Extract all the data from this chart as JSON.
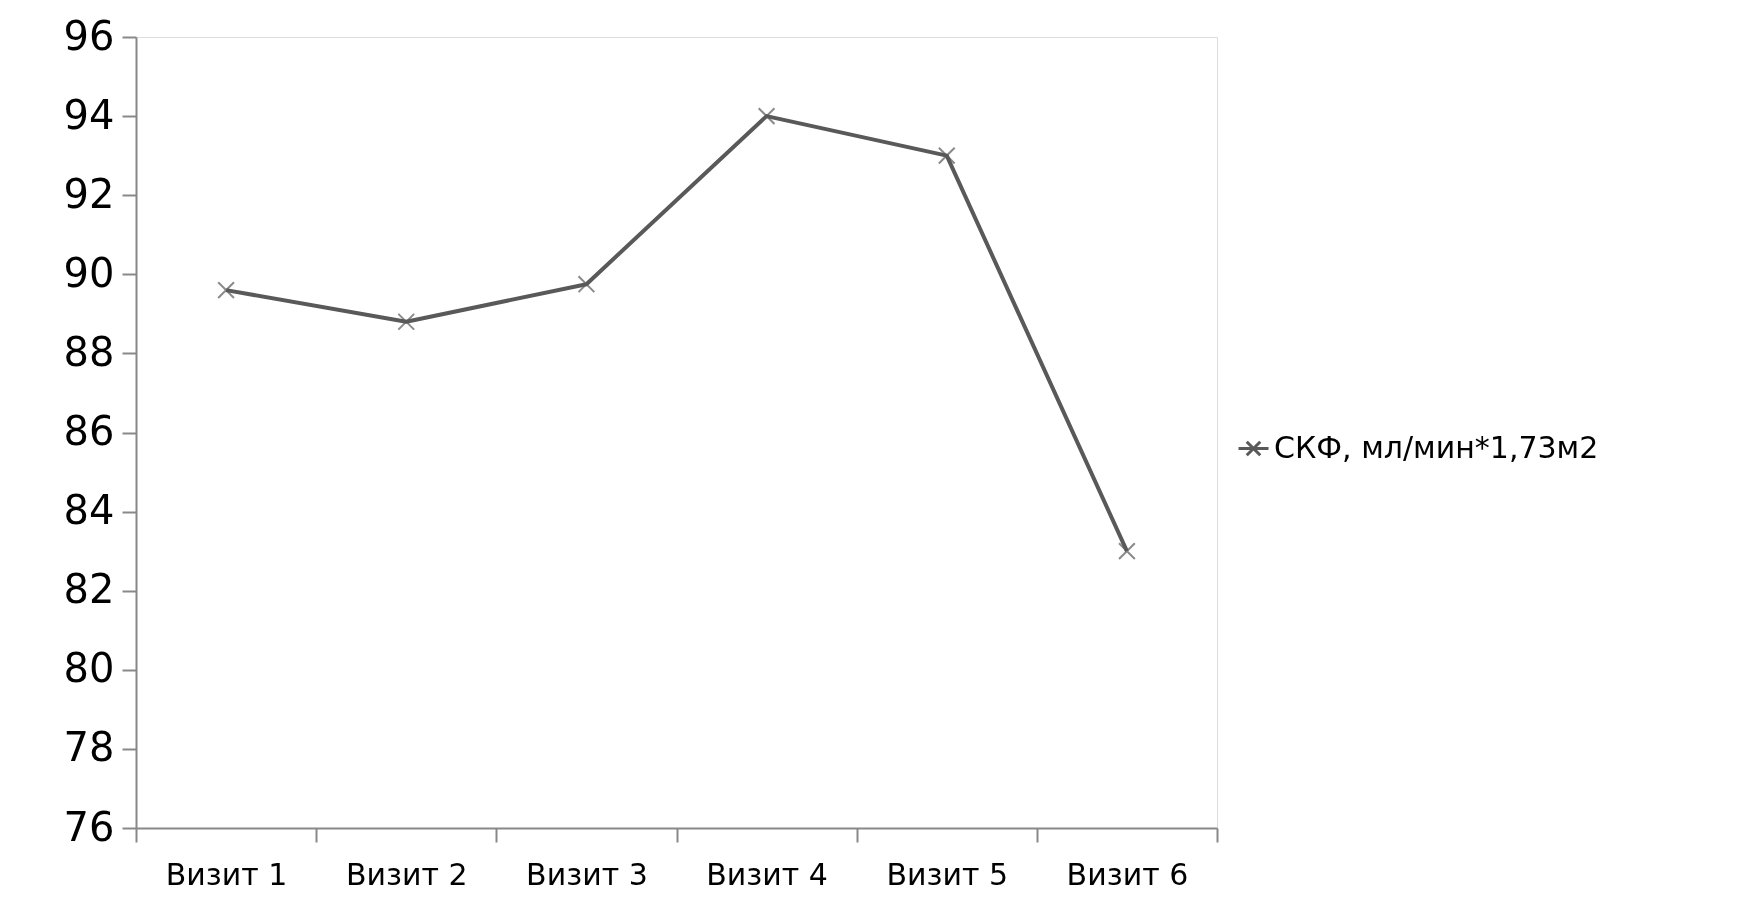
{
  "chart_data": {
    "type": "line",
    "categories": [
      "Визит 1",
      "Визит 2",
      "Визит 3",
      "Визит 4",
      "Визит 5",
      "Визит 6"
    ],
    "series": [
      {
        "name": "СКФ, мл/мин*1,73м2",
        "color": "#595959",
        "values": [
          89.6,
          88.8,
          89.75,
          94,
          93,
          83
        ]
      }
    ],
    "ylim": [
      76,
      96
    ],
    "yticks": [
      76,
      78,
      80,
      82,
      84,
      86,
      88,
      90,
      92,
      94,
      96
    ],
    "grid": false,
    "legend": "right",
    "marker": "cross",
    "line_style": "solid"
  }
}
